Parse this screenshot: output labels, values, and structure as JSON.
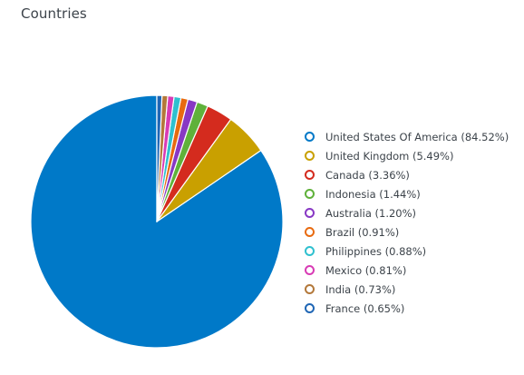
{
  "chart_data": {
    "type": "pie",
    "title": "Countries",
    "slices": [
      {
        "label": "United States Of America (84.52%)",
        "name": "United States Of America",
        "value": 84.52,
        "color": "#0079c8"
      },
      {
        "label": "United Kingdom (5.49%)",
        "name": "United Kingdom",
        "value": 5.49,
        "color": "#c9a000"
      },
      {
        "label": "Canada (3.36%)",
        "name": "Canada",
        "value": 3.36,
        "color": "#d42b1e"
      },
      {
        "label": "Indonesia (1.44%)",
        "name": "Indonesia",
        "value": 1.44,
        "color": "#5fb13a"
      },
      {
        "label": "Australia (1.20%)",
        "name": "Australia",
        "value": 1.2,
        "color": "#8838c4"
      },
      {
        "label": "Brazil (0.91%)",
        "name": "Brazil",
        "value": 0.91,
        "color": "#e86a0f"
      },
      {
        "label": "Philippines (0.88%)",
        "name": "Philippines",
        "value": 0.88,
        "color": "#2fc0cf"
      },
      {
        "label": "Mexico (0.81%)",
        "name": "Mexico",
        "value": 0.81,
        "color": "#d83bb5"
      },
      {
        "label": "India (0.73%)",
        "name": "India",
        "value": 0.73,
        "color": "#b3783a"
      },
      {
        "label": "France (0.65%)",
        "name": "France",
        "value": 0.65,
        "color": "#1f66b5"
      }
    ],
    "legend_position": "right"
  }
}
